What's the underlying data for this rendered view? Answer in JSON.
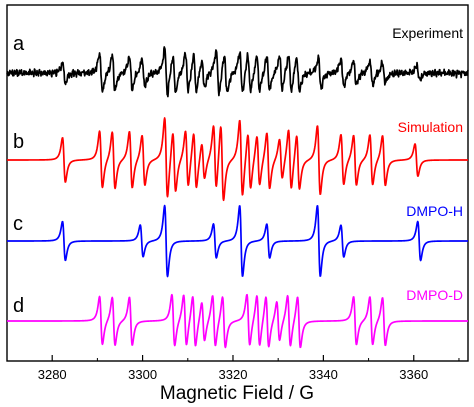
{
  "chart_data": {
    "type": "line",
    "xlabel": "Magnetic Field / G",
    "ylabel": "",
    "xlim": [
      3270,
      3372
    ],
    "xticks": [
      3280,
      3300,
      3320,
      3340,
      3360
    ],
    "grid": false,
    "panels": [
      {
        "letter": "a",
        "name": "Experiment",
        "color": "#000000",
        "lines": [
          {
            "x": 3282.6,
            "amp": 0.22
          },
          {
            "x": 3290.8,
            "amp": 0.42
          },
          {
            "x": 3293.6,
            "amp": 0.38
          },
          {
            "x": 3297.4,
            "amp": 0.36
          },
          {
            "x": 3300.2,
            "amp": 0.3
          },
          {
            "x": 3305.2,
            "amp": 0.5
          },
          {
            "x": 3307.0,
            "amp": 0.4
          },
          {
            "x": 3309.8,
            "amp": 0.42
          },
          {
            "x": 3311.6,
            "amp": 0.4
          },
          {
            "x": 3313.4,
            "amp": 0.3
          },
          {
            "x": 3316.6,
            "amp": 0.48
          },
          {
            "x": 3318.4,
            "amp": 0.42
          },
          {
            "x": 3321.8,
            "amp": 0.44
          },
          {
            "x": 3323.6,
            "amp": 0.4
          },
          {
            "x": 3325.6,
            "amp": 0.38
          },
          {
            "x": 3327.8,
            "amp": 0.36
          },
          {
            "x": 3330.6,
            "amp": 0.36
          },
          {
            "x": 3332.6,
            "amp": 0.4
          },
          {
            "x": 3334.4,
            "amp": 0.38
          },
          {
            "x": 3339.2,
            "amp": 0.32
          },
          {
            "x": 3344.2,
            "amp": 0.3
          },
          {
            "x": 3347.0,
            "amp": 0.26
          },
          {
            "x": 3350.6,
            "amp": 0.26
          },
          {
            "x": 3353.4,
            "amp": 0.22
          },
          {
            "x": 3361.0,
            "amp": 0.16
          }
        ]
      },
      {
        "letter": "b",
        "name": "Simulation",
        "color": "#ff0000",
        "lines": [
          {
            "x": 3282.6,
            "amp": 0.55
          },
          {
            "x": 3290.8,
            "amp": 0.7
          },
          {
            "x": 3293.6,
            "amp": 0.7
          },
          {
            "x": 3297.4,
            "amp": 0.7
          },
          {
            "x": 3300.2,
            "amp": 0.62
          },
          {
            "x": 3305.2,
            "amp": 1.0
          },
          {
            "x": 3307.0,
            "amp": 0.75
          },
          {
            "x": 3309.8,
            "amp": 0.7
          },
          {
            "x": 3311.6,
            "amp": 0.7
          },
          {
            "x": 3313.4,
            "amp": 0.45
          },
          {
            "x": 3316.0,
            "amp": 0.8
          },
          {
            "x": 3317.6,
            "amp": 0.95
          },
          {
            "x": 3321.8,
            "amp": 0.95
          },
          {
            "x": 3323.6,
            "amp": 0.7
          },
          {
            "x": 3325.6,
            "amp": 0.62
          },
          {
            "x": 3327.8,
            "amp": 0.7
          },
          {
            "x": 3330.6,
            "amp": 0.5
          },
          {
            "x": 3332.6,
            "amp": 0.75
          },
          {
            "x": 3334.4,
            "amp": 0.68
          },
          {
            "x": 3339.0,
            "amp": 0.85
          },
          {
            "x": 3344.2,
            "amp": 0.62
          },
          {
            "x": 3347.0,
            "amp": 0.62
          },
          {
            "x": 3350.6,
            "amp": 0.62
          },
          {
            "x": 3353.4,
            "amp": 0.62
          },
          {
            "x": 3360.6,
            "amp": 0.4
          }
        ]
      },
      {
        "letter": "c",
        "name": "DMPO-H",
        "color": "#0000ff",
        "lines": [
          {
            "x": 3282.6,
            "amp": 0.55
          },
          {
            "x": 3299.8,
            "amp": 0.45
          },
          {
            "x": 3305.2,
            "amp": 1.0
          },
          {
            "x": 3316.0,
            "amp": 0.48
          },
          {
            "x": 3321.8,
            "amp": 1.0
          },
          {
            "x": 3327.8,
            "amp": 0.48
          },
          {
            "x": 3339.0,
            "amp": 1.0
          },
          {
            "x": 3344.2,
            "amp": 0.45
          },
          {
            "x": 3361.2,
            "amp": 0.55
          }
        ]
      },
      {
        "letter": "d",
        "name": "DMPO-D",
        "color": "#ff00ff",
        "lines": [
          {
            "x": 3290.8,
            "amp": 0.75
          },
          {
            "x": 3293.6,
            "amp": 0.75
          },
          {
            "x": 3297.4,
            "amp": 0.75
          },
          {
            "x": 3306.8,
            "amp": 0.8
          },
          {
            "x": 3309.4,
            "amp": 0.8
          },
          {
            "x": 3311.4,
            "amp": 0.8
          },
          {
            "x": 3313.4,
            "amp": 0.62
          },
          {
            "x": 3315.8,
            "amp": 0.8
          },
          {
            "x": 3318.0,
            "amp": 0.8
          },
          {
            "x": 3323.4,
            "amp": 0.8
          },
          {
            "x": 3325.6,
            "amp": 0.8
          },
          {
            "x": 3327.6,
            "amp": 0.8
          },
          {
            "x": 3330.0,
            "amp": 0.62
          },
          {
            "x": 3332.4,
            "amp": 0.8
          },
          {
            "x": 3334.6,
            "amp": 0.8
          },
          {
            "x": 3347.0,
            "amp": 0.75
          },
          {
            "x": 3350.6,
            "amp": 0.75
          },
          {
            "x": 3353.4,
            "amp": 0.75
          }
        ]
      }
    ]
  }
}
